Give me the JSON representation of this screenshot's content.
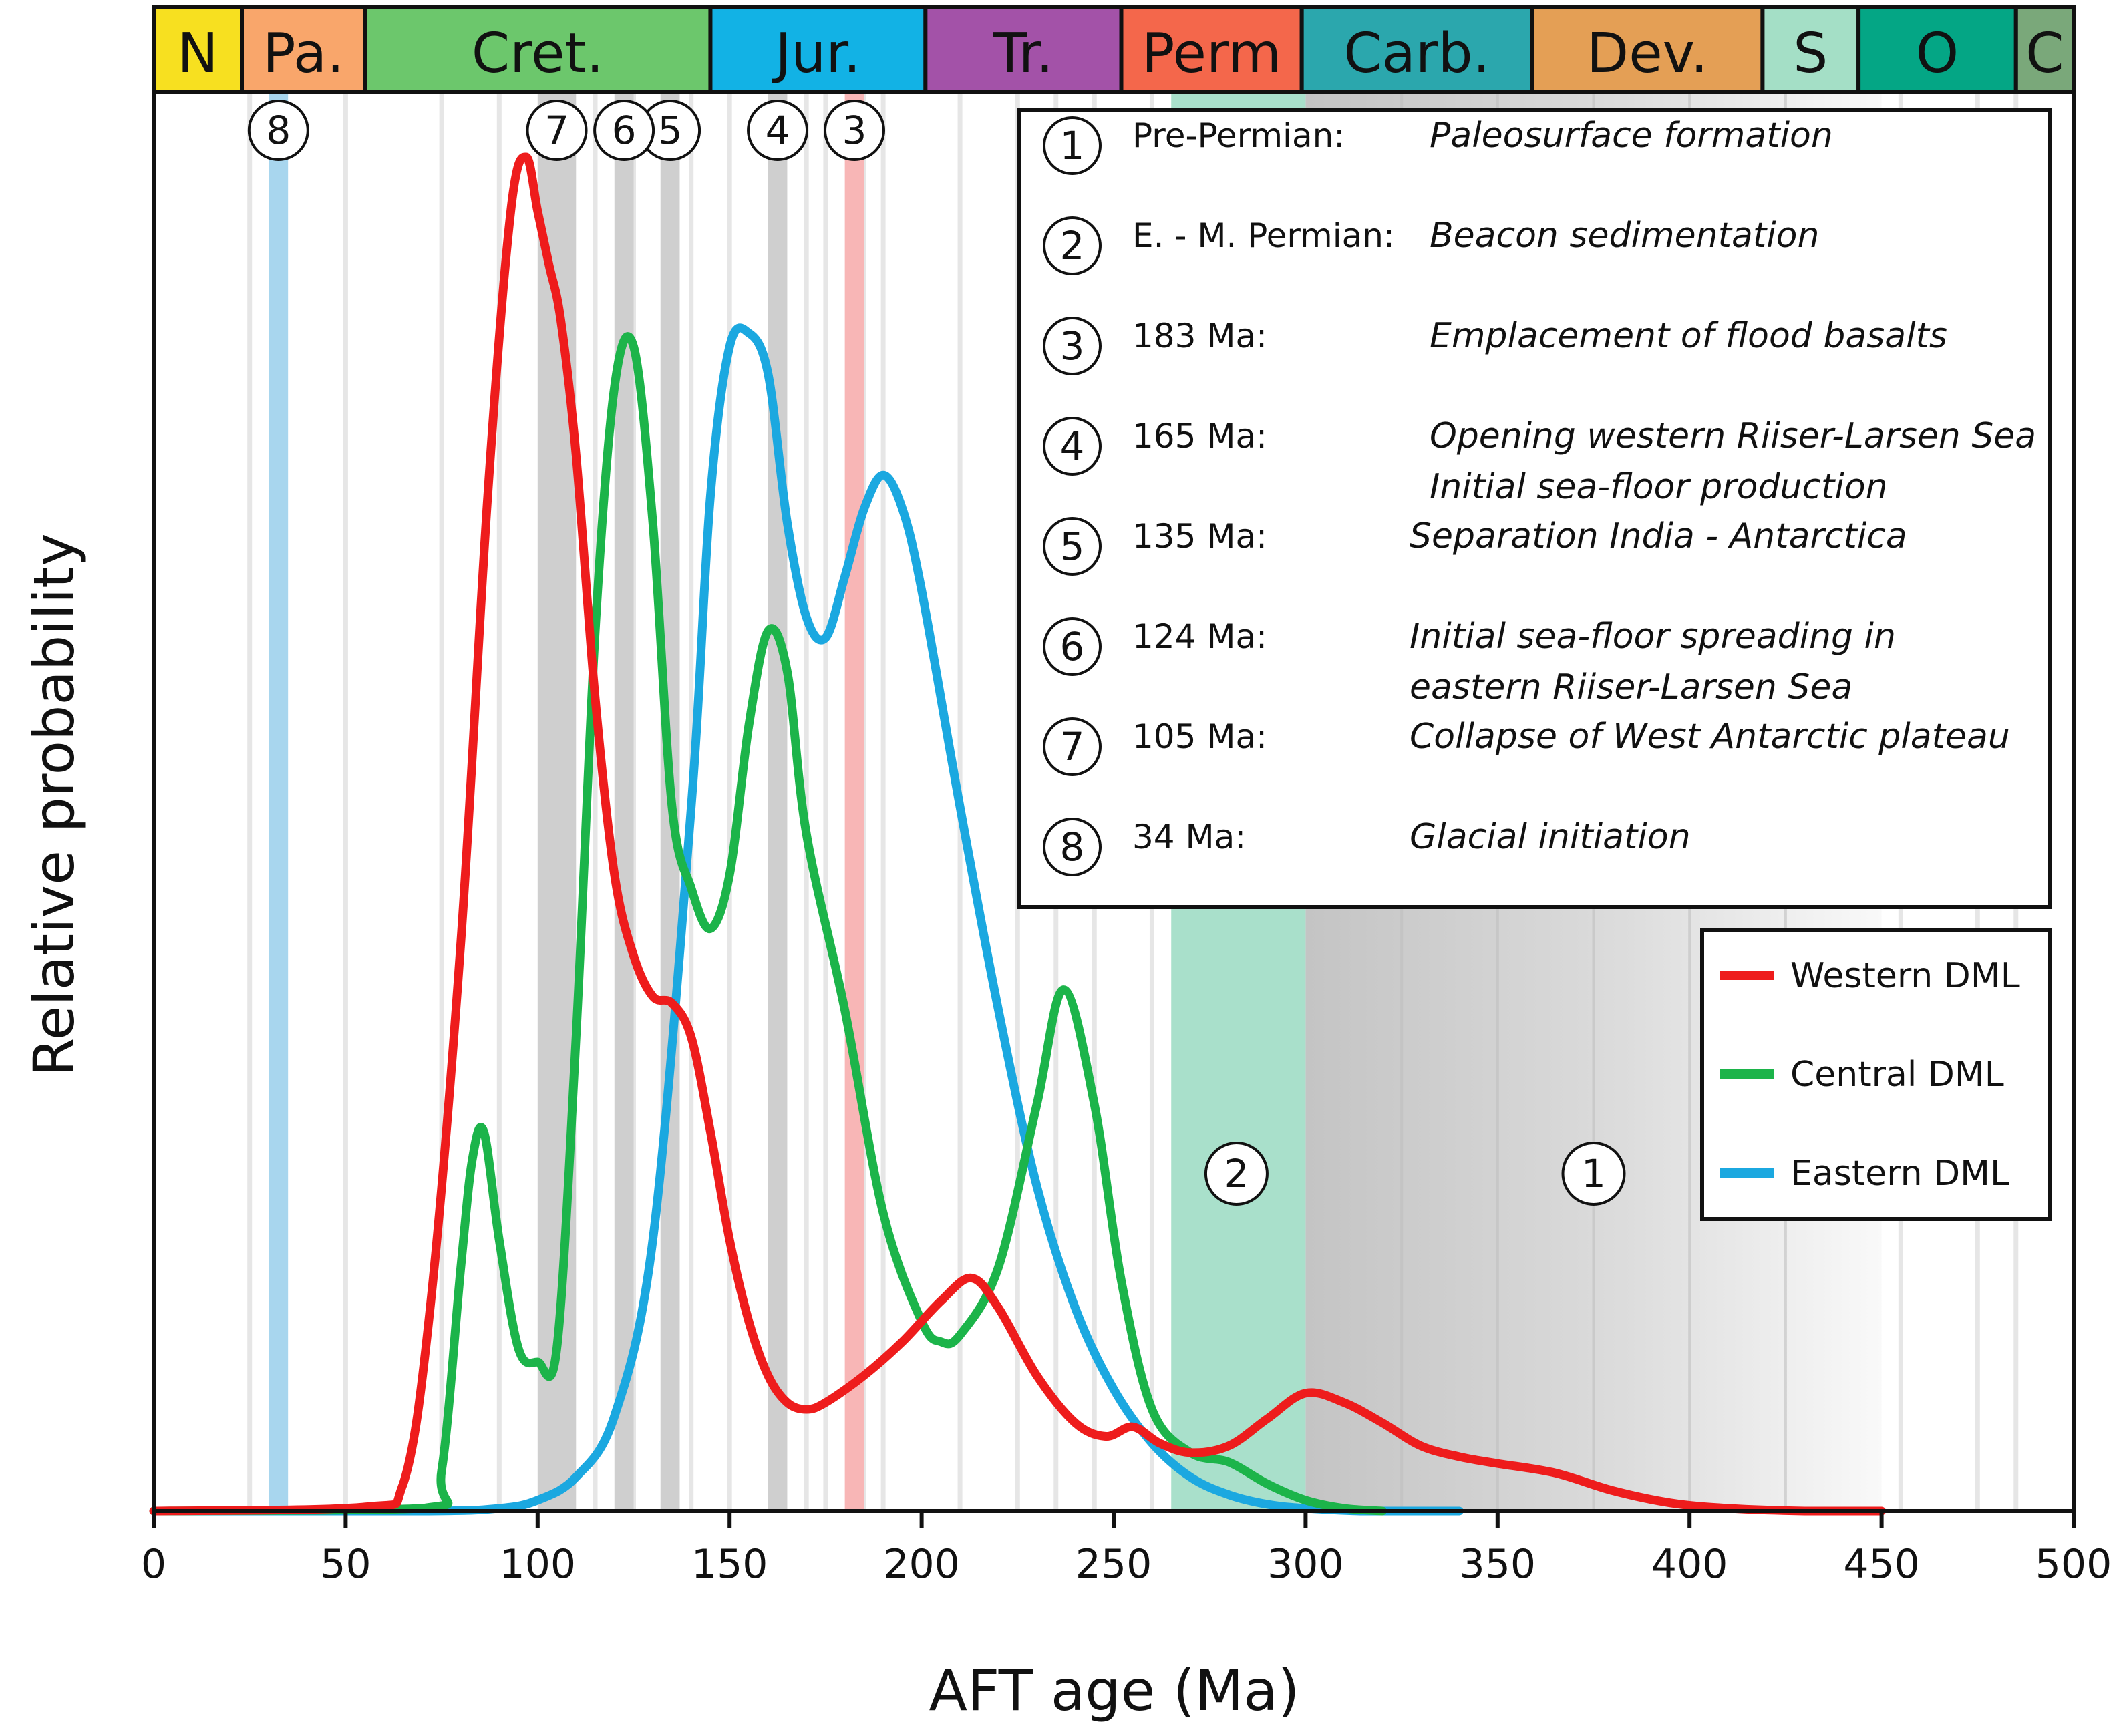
{
  "chart_data": {
    "type": "line",
    "title": "",
    "xlabel": "AFT age (Ma)",
    "ylabel": "Relative probability",
    "xlim": [
      0,
      500
    ],
    "ylim": [
      0,
      1
    ],
    "x_ticks": [
      0,
      50,
      100,
      150,
      200,
      250,
      300,
      350,
      400,
      450,
      500
    ],
    "x_tick_labels": [
      "0",
      "50",
      "100",
      "150",
      "200",
      "250",
      "300",
      "350",
      "400",
      "450",
      "500"
    ],
    "periods": [
      {
        "label": "N",
        "start": 0,
        "end": 23,
        "color": "#f7e020"
      },
      {
        "label": "Pa.",
        "start": 23,
        "end": 55,
        "color": "#f9a66b"
      },
      {
        "label": "Cret.",
        "start": 55,
        "end": 145,
        "color": "#6cc76c"
      },
      {
        "label": "Jur.",
        "start": 145,
        "end": 201,
        "color": "#12b2e5"
      },
      {
        "label": "Tr.",
        "start": 201,
        "end": 252,
        "color": "#a352a8"
      },
      {
        "label": "Perm",
        "start": 252,
        "end": 299,
        "color": "#f4674b"
      },
      {
        "label": "Carb.",
        "start": 299,
        "end": 359,
        "color": "#2ba7ad"
      },
      {
        "label": "Dev.",
        "start": 359,
        "end": 419,
        "color": "#e49f55"
      },
      {
        "label": "S",
        "start": 419,
        "end": 444,
        "color": "#a4dfc6"
      },
      {
        "label": "O",
        "start": 444,
        "end": 485,
        "color": "#04a685"
      },
      {
        "label": "C",
        "start": 485,
        "end": 500,
        "color": "#7aa87a"
      }
    ],
    "series": [
      {
        "name": "Western DML",
        "color": "#ee1c1c",
        "x": [
          0,
          55,
          65,
          72,
          80,
          87,
          93,
          97,
          100,
          103,
          106,
          110,
          115,
          120,
          125,
          130,
          135,
          140,
          145,
          150,
          155,
          160,
          165,
          170,
          175,
          185,
          195,
          205,
          213,
          220,
          230,
          240,
          248,
          255,
          262,
          270,
          280,
          290,
          300,
          310,
          320,
          330,
          340,
          350,
          365,
          380,
          395,
          410,
          430,
          450
        ],
        "values": [
          0,
          0.003,
          0.02,
          0.15,
          0.42,
          0.75,
          0.96,
          1.0,
          0.96,
          0.92,
          0.88,
          0.78,
          0.6,
          0.47,
          0.41,
          0.38,
          0.375,
          0.35,
          0.28,
          0.2,
          0.14,
          0.1,
          0.08,
          0.075,
          0.08,
          0.1,
          0.125,
          0.155,
          0.172,
          0.15,
          0.1,
          0.065,
          0.055,
          0.062,
          0.05,
          0.043,
          0.048,
          0.068,
          0.087,
          0.08,
          0.065,
          0.048,
          0.04,
          0.035,
          0.028,
          0.015,
          0.006,
          0.002,
          0.0,
          0.0
        ]
      },
      {
        "name": "Central DML",
        "color": "#1cb44a",
        "x": [
          0,
          70,
          75,
          80,
          83,
          86,
          90,
          95,
          100,
          105,
          110,
          115,
          120,
          125,
          130,
          135,
          140,
          145,
          150,
          155,
          160,
          165,
          170,
          180,
          190,
          200,
          205,
          210,
          220,
          230,
          237,
          245,
          252,
          260,
          270,
          280,
          290,
          300,
          310,
          320
        ],
        "values": [
          0,
          0.002,
          0.03,
          0.18,
          0.26,
          0.28,
          0.2,
          0.12,
          0.11,
          0.12,
          0.35,
          0.65,
          0.83,
          0.86,
          0.73,
          0.52,
          0.46,
          0.43,
          0.47,
          0.58,
          0.65,
          0.62,
          0.5,
          0.37,
          0.22,
          0.14,
          0.125,
          0.13,
          0.18,
          0.3,
          0.385,
          0.3,
          0.17,
          0.075,
          0.043,
          0.036,
          0.02,
          0.008,
          0.002,
          0.0
        ]
      },
      {
        "name": "Eastern DML",
        "color": "#1ba8e0",
        "x": [
          0,
          70,
          90,
          100,
          110,
          120,
          130,
          140,
          145,
          150,
          155,
          160,
          165,
          170,
          175,
          180,
          185,
          190,
          195,
          200,
          210,
          220,
          230,
          240,
          250,
          260,
          270,
          280,
          290,
          300,
          315,
          340
        ],
        "values": [
          0,
          0.0,
          0.002,
          0.008,
          0.025,
          0.07,
          0.2,
          0.52,
          0.75,
          0.86,
          0.87,
          0.84,
          0.73,
          0.66,
          0.645,
          0.69,
          0.74,
          0.765,
          0.74,
          0.68,
          0.52,
          0.37,
          0.24,
          0.15,
          0.09,
          0.05,
          0.025,
          0.012,
          0.005,
          0.002,
          0.0,
          0.0
        ]
      }
    ],
    "events": [
      {
        "id": "1",
        "time": "Pre-Permian:",
        "desc": [
          "Paleosurface formation"
        ],
        "start": 300,
        "end": 450,
        "kind": "gradient-gray"
      },
      {
        "id": "2",
        "time": "E. - M. Permian:",
        "desc": [
          "Beacon sedimentation"
        ],
        "start": 265,
        "end": 300,
        "kind": "green"
      },
      {
        "id": "3",
        "time": "183 Ma:",
        "desc": [
          "Emplacement of flood basalts"
        ],
        "start": 180,
        "end": 185,
        "kind": "pink"
      },
      {
        "id": "4",
        "time": "165 Ma:",
        "desc": [
          "Opening western Riiser-Larsen Sea",
          "Initial sea-floor production"
        ],
        "start": 160,
        "end": 165,
        "kind": "gray"
      },
      {
        "id": "5",
        "time": "135 Ma:",
        "desc": [
          "Separation India - Antarctica"
        ],
        "start": 132,
        "end": 137,
        "kind": "gray"
      },
      {
        "id": "6",
        "time": "124 Ma:",
        "desc": [
          "Initial sea-floor spreading in",
          "eastern Riiser-Larsen Sea"
        ],
        "start": 120,
        "end": 125,
        "kind": "gray"
      },
      {
        "id": "7",
        "time": "105 Ma:",
        "desc": [
          "Collapse of West Antarctic plateau"
        ],
        "start": 100,
        "end": 110,
        "kind": "gray"
      },
      {
        "id": "8",
        "time": "34 Ma:",
        "desc": [
          "Glacial initiation"
        ],
        "start": 30,
        "end": 35,
        "kind": "blue"
      }
    ],
    "legend": {
      "position": "right, below event box"
    }
  }
}
